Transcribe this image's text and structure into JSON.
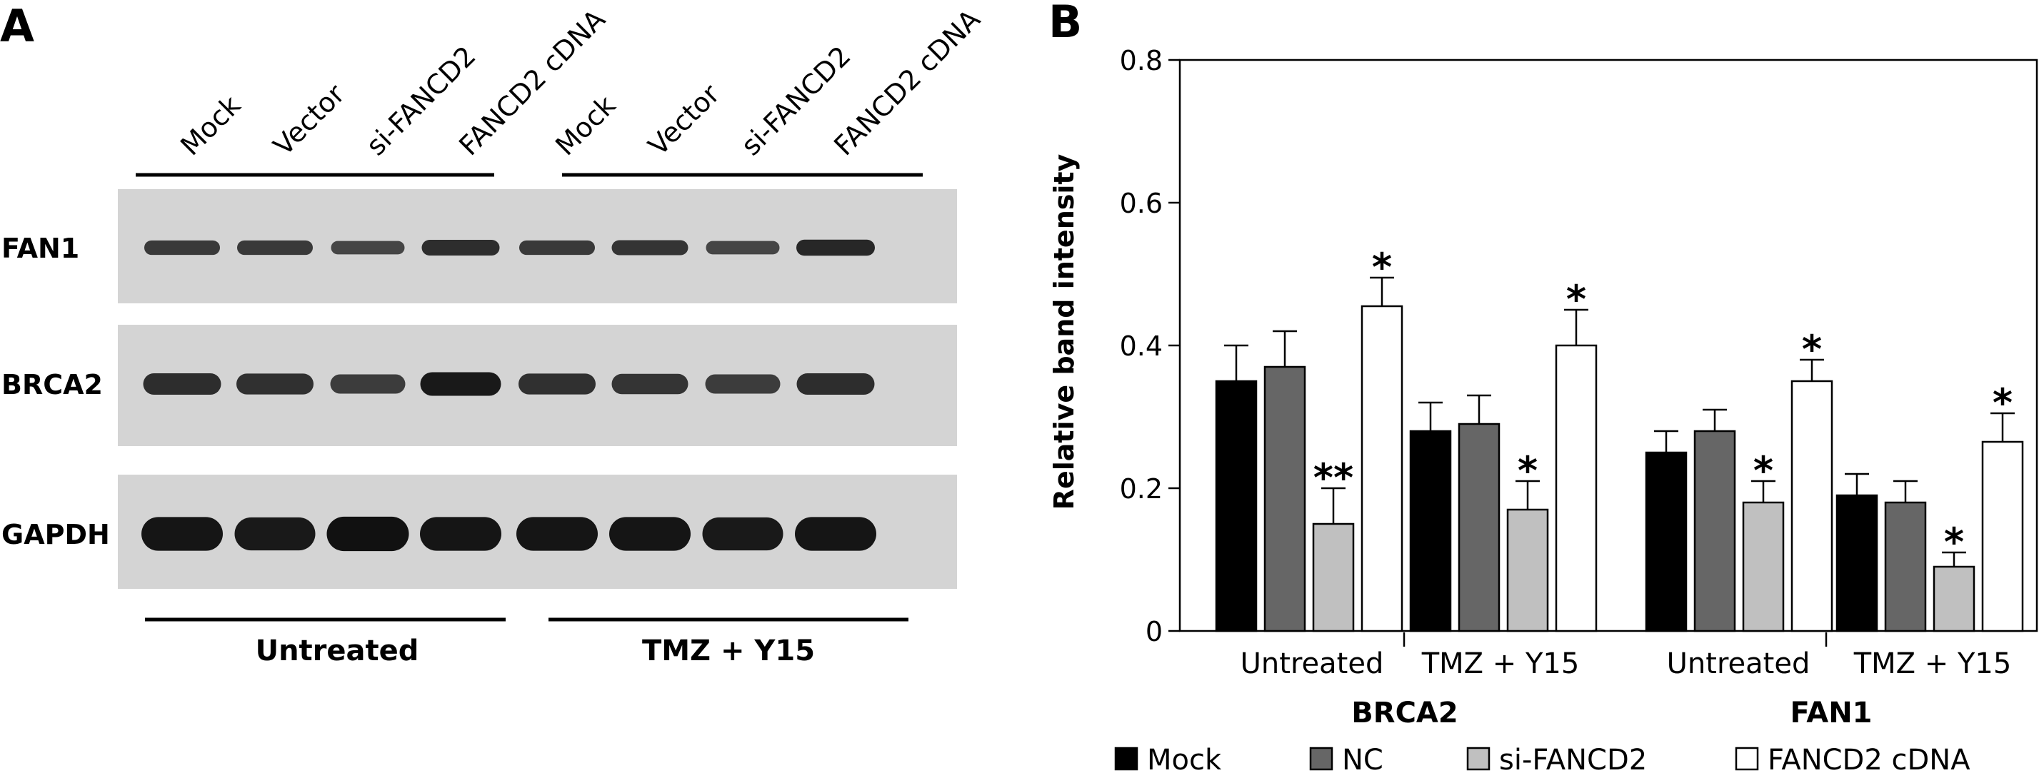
{
  "panel_a": {
    "letter": "A",
    "lane_labels": [
      "Mock",
      "Vector",
      "si-FANCD2",
      "FANCD2 cDNA",
      "Mock",
      "Vector",
      "si-FANCD2",
      "FANCD2 cDNA"
    ],
    "row_labels": [
      "FAN1",
      "BRCA2",
      "GAPDH"
    ],
    "group_labels": [
      "Untreated",
      "TMZ + Y15"
    ],
    "band_intensity": {
      "FAN1": [
        0.55,
        0.55,
        0.4,
        0.7,
        0.55,
        0.6,
        0.4,
        0.75
      ],
      "BRCA2": [
        0.7,
        0.65,
        0.5,
        0.9,
        0.65,
        0.6,
        0.5,
        0.7
      ],
      "GAPDH": [
        0.95,
        0.9,
        1.0,
        0.95,
        0.95,
        0.95,
        0.9,
        0.95
      ]
    },
    "colors": {
      "membrane": "#d4d4d4",
      "band": "#111111"
    }
  },
  "chart_data": {
    "type": "bar",
    "panel_letter": "B",
    "ylabel": "Relative band intensity",
    "ylim": [
      0,
      0.8
    ],
    "yticks": [
      0,
      0.2,
      0.4,
      0.6,
      0.8
    ],
    "ytick_labels": [
      "0",
      "0.2",
      "0.4",
      "0.6",
      "0.8"
    ],
    "groups": [
      {
        "label": "BRCA2",
        "subgroups": [
          "Untreated",
          "TMZ + Y15"
        ]
      },
      {
        "label": "FAN1",
        "subgroups": [
          "Untreated",
          "TMZ + Y15"
        ]
      }
    ],
    "series": [
      {
        "name": "Mock",
        "color": "#000000",
        "values": [
          0.35,
          0.28,
          0.25,
          0.19
        ],
        "errors": [
          0.05,
          0.04,
          0.03,
          0.03
        ],
        "sig": [
          "",
          "",
          "",
          ""
        ]
      },
      {
        "name": "NC",
        "color": "#666666",
        "values": [
          0.37,
          0.29,
          0.28,
          0.18
        ],
        "errors": [
          0.05,
          0.04,
          0.03,
          0.03
        ],
        "sig": [
          "",
          "",
          "",
          ""
        ]
      },
      {
        "name": "si-FANCD2",
        "color": "#c0c0c0",
        "values": [
          0.15,
          0.17,
          0.18,
          0.09
        ],
        "errors": [
          0.05,
          0.04,
          0.03,
          0.02
        ],
        "sig": [
          "**",
          "*",
          "*",
          "*"
        ]
      },
      {
        "name": "FANCD2 cDNA",
        "color": "#ffffff",
        "values": [
          0.455,
          0.4,
          0.35,
          0.265
        ],
        "errors": [
          0.04,
          0.05,
          0.03,
          0.04
        ],
        "sig": [
          "*",
          "*",
          "*",
          "*"
        ]
      }
    ],
    "legend_position": "bottom",
    "grid": false
  }
}
